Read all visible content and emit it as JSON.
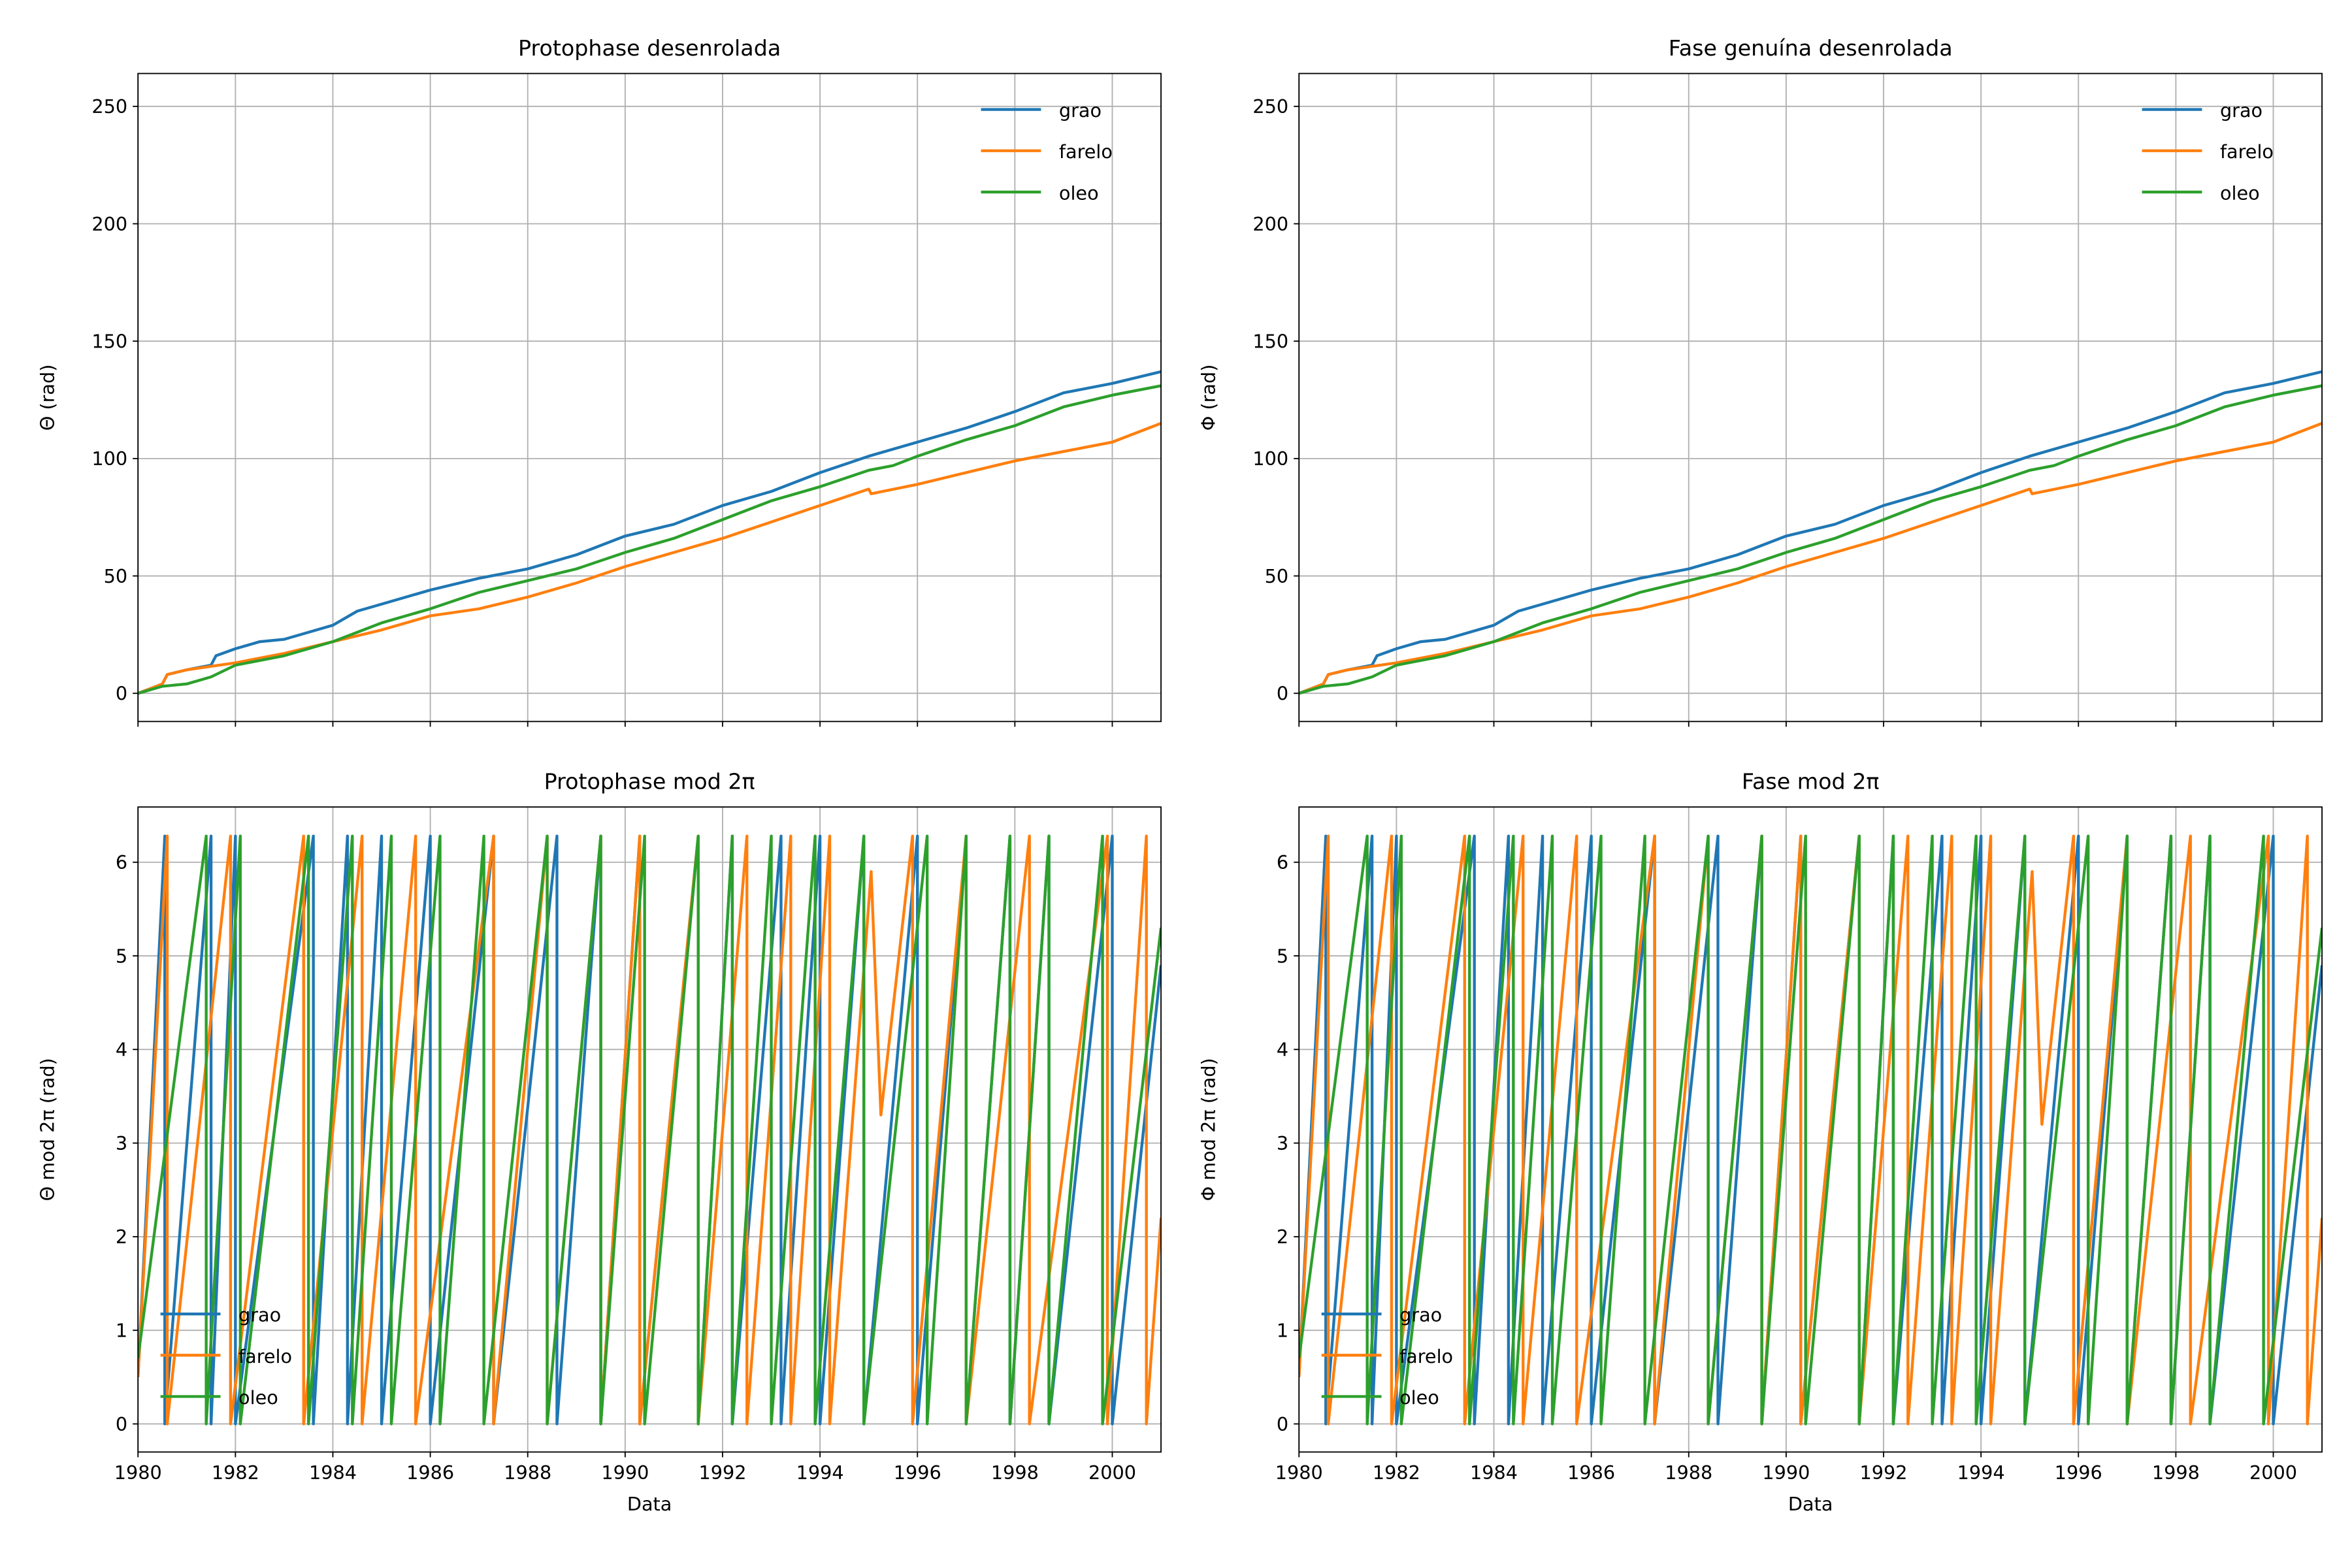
{
  "chart_data": [
    {
      "type": "line",
      "title": "Protophase desenrolada",
      "ylabel": "Θ (rad)",
      "xlim": [
        1980,
        2001
      ],
      "ylim": [
        -12,
        264
      ],
      "xticks": [
        1980,
        1982,
        1984,
        1986,
        1988,
        1990,
        1992,
        1994,
        1996,
        1998,
        2000
      ],
      "yticks": [
        0,
        50,
        100,
        150,
        200,
        250
      ],
      "grid": true,
      "legend": "upper right",
      "series": [
        {
          "name": "grao",
          "color": "#1f77b4",
          "x": [
            1980,
            1980.5,
            1980.6,
            1981,
            1981.5,
            1981.6,
            1982,
            1982.5,
            1983,
            1984,
            1984.5,
            1985,
            1986,
            1987,
            1988,
            1989,
            1990,
            1991,
            1992,
            1993,
            1994,
            1995,
            1996,
            1997,
            1998,
            1999,
            2000,
            2001
          ],
          "values": [
            0,
            4,
            8,
            10,
            12,
            16,
            19,
            22,
            23,
            29,
            35,
            38,
            44,
            49,
            53,
            59,
            67,
            72,
            80,
            86,
            94,
            101,
            107,
            113,
            120,
            128,
            132,
            137
          ]
        },
        {
          "name": "farelo",
          "color": "#ff7f0e",
          "x": [
            1980,
            1980.5,
            1980.6,
            1981,
            1982,
            1983,
            1984,
            1985,
            1986,
            1987,
            1988,
            1989,
            1990,
            1991,
            1992,
            1993,
            1994,
            1995,
            1995.05,
            1996,
            1997,
            1998,
            1999,
            2000,
            2001
          ],
          "values": [
            0,
            4,
            8,
            10,
            13,
            17,
            22,
            27,
            33,
            36,
            41,
            47,
            54,
            60,
            66,
            73,
            80,
            87,
            85,
            89,
            94,
            99,
            103,
            107,
            115
          ]
        },
        {
          "name": "oleo",
          "color": "#2ca02c",
          "x": [
            1980,
            1980.5,
            1981,
            1981.5,
            1982,
            1983,
            1984,
            1985,
            1986,
            1987,
            1988,
            1989,
            1990,
            1991,
            1992,
            1993,
            1994,
            1995,
            1995.5,
            1996,
            1997,
            1998,
            1999,
            2000,
            2001
          ],
          "values": [
            0,
            3,
            4,
            7,
            12,
            16,
            22,
            30,
            36,
            43,
            48,
            53,
            60,
            66,
            74,
            82,
            88,
            95,
            97,
            101,
            108,
            114,
            122,
            127,
            131
          ]
        }
      ]
    },
    {
      "type": "line",
      "title": "Fase genuína desenrolada",
      "ylabel": "Φ (rad)",
      "xlim": [
        1980,
        2001
      ],
      "ylim": [
        -12,
        264
      ],
      "xticks": [
        1980,
        1982,
        1984,
        1986,
        1988,
        1990,
        1992,
        1994,
        1996,
        1998,
        2000
      ],
      "yticks": [
        0,
        50,
        100,
        150,
        200,
        250
      ],
      "grid": true,
      "legend": "upper right",
      "series": [
        {
          "name": "grao",
          "color": "#1f77b4",
          "x": [
            1980,
            1980.5,
            1980.6,
            1981,
            1981.5,
            1981.6,
            1982,
            1982.5,
            1983,
            1984,
            1984.5,
            1985,
            1986,
            1987,
            1988,
            1989,
            1990,
            1991,
            1992,
            1993,
            1994,
            1995,
            1996,
            1997,
            1998,
            1999,
            2000,
            2001
          ],
          "values": [
            0,
            4,
            8,
            10,
            12,
            16,
            19,
            22,
            23,
            29,
            35,
            38,
            44,
            49,
            53,
            59,
            67,
            72,
            80,
            86,
            94,
            101,
            107,
            113,
            120,
            128,
            132,
            137
          ]
        },
        {
          "name": "farelo",
          "color": "#ff7f0e",
          "x": [
            1980,
            1980.5,
            1980.6,
            1981,
            1982,
            1983,
            1984,
            1985,
            1986,
            1987,
            1988,
            1989,
            1990,
            1991,
            1992,
            1993,
            1994,
            1995,
            1995.05,
            1996,
            1997,
            1998,
            1999,
            2000,
            2001
          ],
          "values": [
            0,
            4,
            8,
            10,
            13,
            17,
            22,
            27,
            33,
            36,
            41,
            47,
            54,
            60,
            66,
            73,
            80,
            87,
            85,
            89,
            94,
            99,
            103,
            107,
            115
          ]
        },
        {
          "name": "oleo",
          "color": "#2ca02c",
          "x": [
            1980,
            1980.5,
            1981,
            1981.5,
            1982,
            1983,
            1984,
            1985,
            1986,
            1987,
            1988,
            1989,
            1990,
            1991,
            1992,
            1993,
            1994,
            1995,
            1995.5,
            1996,
            1997,
            1998,
            1999,
            2000,
            2001
          ],
          "values": [
            0,
            3,
            4,
            7,
            12,
            16,
            22,
            30,
            36,
            43,
            48,
            53,
            60,
            66,
            74,
            82,
            88,
            95,
            97,
            101,
            108,
            114,
            122,
            127,
            131
          ]
        }
      ]
    },
    {
      "type": "line",
      "title": "Protophase mod 2π",
      "ylabel": "Θ mod 2π (rad)",
      "xlabel": "Data",
      "xlim": [
        1980,
        2001
      ],
      "ylim": [
        -0.3,
        6.59
      ],
      "xticks": [
        1980,
        1982,
        1984,
        1986,
        1988,
        1990,
        1992,
        1994,
        1996,
        1998,
        2000
      ],
      "yticks": [
        0,
        1,
        2,
        3,
        4,
        5,
        6
      ],
      "grid": true,
      "legend": "lower left",
      "series": [
        {
          "name": "grao",
          "color": "#1f77b4",
          "x": [
            1980,
            1980.55,
            1980.55,
            1981.5,
            1981.5,
            1982.0,
            1982.0,
            1983.6,
            1983.6,
            1984.3,
            1984.3,
            1985.0,
            1985.0,
            1986.0,
            1986.0,
            1987.3,
            1987.3,
            1988.6,
            1988.6,
            1989.5,
            1989.5,
            1990.3,
            1990.3,
            1991.5,
            1991.5,
            1992.2,
            1992.2,
            1993.2,
            1993.2,
            1994.0,
            1994.0,
            1994.9,
            1994.9,
            1996.0,
            1996.0,
            1997.0,
            1997.0,
            1997.9,
            1997.9,
            1998.7,
            1998.7,
            2000.0,
            2000.0,
            2001
          ],
          "values": [
            0.5,
            6.28,
            0,
            6.28,
            0,
            6.28,
            0,
            6.28,
            0,
            6.28,
            0,
            6.28,
            0,
            6.28,
            0,
            6.28,
            0,
            6.28,
            0,
            6.28,
            0,
            6.28,
            0,
            6.28,
            0,
            6.28,
            0,
            6.28,
            0,
            6.28,
            0,
            6.28,
            0,
            6.28,
            0,
            6.28,
            0,
            6.28,
            0,
            6.28,
            0,
            6.28,
            0,
            4.9
          ]
        },
        {
          "name": "farelo",
          "color": "#ff7f0e",
          "x": [
            1980,
            1980.6,
            1980.6,
            1981.9,
            1981.9,
            1983.4,
            1983.4,
            1984.6,
            1984.6,
            1985.7,
            1985.7,
            1987.3,
            1987.3,
            1988.4,
            1988.4,
            1989.5,
            1989.5,
            1990.3,
            1990.3,
            1991.5,
            1991.5,
            1992.5,
            1992.5,
            1993.4,
            1993.4,
            1994.2,
            1994.2,
            1995.05,
            1995.25,
            1995.9,
            1995.9,
            1997.0,
            1997.0,
            1998.3,
            1998.3,
            1999.9,
            1999.9,
            2000.7,
            2000.7,
            2001
          ],
          "values": [
            0.5,
            6.28,
            0,
            6.28,
            0,
            6.28,
            0,
            6.28,
            0,
            6.28,
            0,
            6.28,
            0,
            6.28,
            0,
            6.28,
            0,
            6.28,
            0,
            6.28,
            0,
            6.28,
            0,
            6.28,
            0,
            6.28,
            0,
            5.9,
            3.3,
            6.28,
            0,
            6.28,
            0,
            6.28,
            0,
            6.28,
            0,
            6.28,
            0,
            2.2
          ]
        },
        {
          "name": "oleo",
          "color": "#2ca02c",
          "x": [
            1980,
            1981.4,
            1981.4,
            1982.1,
            1982.1,
            1983.5,
            1983.5,
            1984.4,
            1984.4,
            1985.2,
            1985.2,
            1986.2,
            1986.2,
            1987.1,
            1987.1,
            1988.4,
            1988.4,
            1989.5,
            1989.5,
            1990.4,
            1990.4,
            1991.5,
            1991.5,
            1992.2,
            1992.2,
            1993.0,
            1993.0,
            1993.9,
            1993.9,
            1994.9,
            1994.9,
            1996.2,
            1996.2,
            1997.0,
            1997.0,
            1997.9,
            1997.9,
            1998.7,
            1998.7,
            1999.8,
            1999.8,
            2001
          ],
          "values": [
            0.7,
            6.28,
            0,
            6.28,
            0,
            6.28,
            0,
            6.28,
            0,
            6.28,
            0,
            6.28,
            0,
            6.28,
            0,
            6.28,
            0,
            6.28,
            0,
            6.28,
            0,
            6.28,
            0,
            6.28,
            0,
            6.28,
            0,
            6.28,
            0,
            6.28,
            0,
            6.28,
            0,
            6.28,
            0,
            6.28,
            0,
            6.28,
            0,
            6.28,
            0,
            5.3
          ]
        }
      ]
    },
    {
      "type": "line",
      "title": "Fase mod 2π",
      "ylabel": "Φ mod 2π (rad)",
      "xlabel": "Data",
      "xlim": [
        1980,
        2001
      ],
      "ylim": [
        -0.3,
        6.59
      ],
      "xticks": [
        1980,
        1982,
        1984,
        1986,
        1988,
        1990,
        1992,
        1994,
        1996,
        1998,
        2000
      ],
      "yticks": [
        0,
        1,
        2,
        3,
        4,
        5,
        6
      ],
      "grid": true,
      "legend": "lower left",
      "series": [
        {
          "name": "grao",
          "color": "#1f77b4",
          "x": [
            1980,
            1980.55,
            1980.55,
            1981.5,
            1981.5,
            1982.0,
            1982.0,
            1983.6,
            1983.6,
            1984.3,
            1984.3,
            1985.0,
            1985.0,
            1986.0,
            1986.0,
            1987.3,
            1987.3,
            1988.6,
            1988.6,
            1989.5,
            1989.5,
            1990.3,
            1990.3,
            1991.5,
            1991.5,
            1992.2,
            1992.2,
            1993.2,
            1993.2,
            1994.0,
            1994.0,
            1994.9,
            1994.9,
            1996.0,
            1996.0,
            1997.0,
            1997.0,
            1997.9,
            1997.9,
            1998.7,
            1998.7,
            2000.0,
            2000.0,
            2001
          ],
          "values": [
            0.5,
            6.28,
            0,
            6.28,
            0,
            6.28,
            0,
            6.28,
            0,
            6.28,
            0,
            6.28,
            0,
            6.28,
            0,
            6.28,
            0,
            6.28,
            0,
            6.28,
            0,
            6.28,
            0,
            6.28,
            0,
            6.28,
            0,
            6.28,
            0,
            6.28,
            0,
            6.28,
            0,
            6.28,
            0,
            6.28,
            0,
            6.28,
            0,
            6.28,
            0,
            6.28,
            0,
            4.9
          ]
        },
        {
          "name": "farelo",
          "color": "#ff7f0e",
          "x": [
            1980,
            1980.6,
            1980.6,
            1981.9,
            1981.9,
            1983.4,
            1983.4,
            1984.6,
            1984.6,
            1985.7,
            1985.7,
            1987.3,
            1987.3,
            1988.4,
            1988.4,
            1989.5,
            1989.5,
            1990.3,
            1990.3,
            1991.5,
            1991.5,
            1992.5,
            1992.5,
            1993.4,
            1993.4,
            1994.2,
            1994.2,
            1995.05,
            1995.25,
            1995.9,
            1995.9,
            1997.0,
            1997.0,
            1998.3,
            1998.3,
            1999.9,
            1999.9,
            2000.7,
            2000.7,
            2001
          ],
          "values": [
            0.5,
            6.28,
            0,
            6.28,
            0,
            6.28,
            0,
            6.28,
            0,
            6.28,
            0,
            6.28,
            0,
            6.28,
            0,
            6.28,
            0,
            6.28,
            0,
            6.28,
            0,
            6.28,
            0,
            6.28,
            0,
            6.28,
            0,
            5.9,
            3.2,
            6.28,
            0,
            6.28,
            0,
            6.28,
            0,
            6.28,
            0,
            6.28,
            0,
            2.2
          ]
        },
        {
          "name": "oleo",
          "color": "#2ca02c",
          "x": [
            1980,
            1981.4,
            1981.4,
            1982.1,
            1982.1,
            1983.5,
            1983.5,
            1984.4,
            1984.4,
            1985.2,
            1985.2,
            1986.2,
            1986.2,
            1987.1,
            1987.1,
            1988.4,
            1988.4,
            1989.5,
            1989.5,
            1990.4,
            1990.4,
            1991.5,
            1991.5,
            1992.2,
            1992.2,
            1993.0,
            1993.0,
            1993.9,
            1993.9,
            1994.9,
            1994.9,
            1996.2,
            1996.2,
            1997.0,
            1997.0,
            1997.9,
            1997.9,
            1998.7,
            1998.7,
            1999.8,
            1999.8,
            2001
          ],
          "values": [
            0.7,
            6.28,
            0,
            6.28,
            0,
            6.28,
            0,
            6.28,
            0,
            6.28,
            0,
            6.28,
            0,
            6.28,
            0,
            6.28,
            0,
            6.28,
            0,
            6.28,
            0,
            6.28,
            0,
            6.28,
            0,
            6.28,
            0,
            6.28,
            0,
            6.28,
            0,
            6.28,
            0,
            6.28,
            0,
            6.28,
            0,
            6.28,
            0,
            6.28,
            0,
            5.3
          ]
        }
      ]
    }
  ]
}
